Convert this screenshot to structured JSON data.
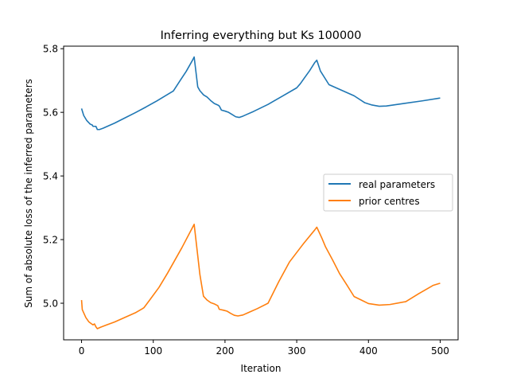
{
  "chart_data": {
    "type": "line",
    "title": "Inferring everything but Ks 100000",
    "xlabel": "Iteration",
    "ylabel": "Sum of absolute loss of the inferred parameters",
    "xlim": [
      -25,
      525
    ],
    "ylim": [
      4.885,
      5.808
    ],
    "xticks": [
      0,
      100,
      200,
      300,
      400,
      500
    ],
    "xtick_labels": [
      "0",
      "100",
      "200",
      "300",
      "400",
      "500"
    ],
    "yticks": [
      5.0,
      5.2,
      5.4,
      5.6,
      5.8
    ],
    "ytick_labels": [
      "5.0",
      "5.2",
      "5.4",
      "5.6",
      "5.8"
    ],
    "grid": false,
    "legend_position": "center-right",
    "series": [
      {
        "name": "real parameters",
        "color": "#1f77b4",
        "points": [
          [
            0,
            5.612
          ],
          [
            3,
            5.59
          ],
          [
            7,
            5.575
          ],
          [
            12,
            5.563
          ],
          [
            15,
            5.56
          ],
          [
            16,
            5.556
          ],
          [
            20,
            5.556
          ],
          [
            22,
            5.546
          ],
          [
            25,
            5.546
          ],
          [
            30,
            5.55
          ],
          [
            35,
            5.555
          ],
          [
            40,
            5.56
          ],
          [
            46,
            5.566
          ],
          [
            60,
            5.582
          ],
          [
            75,
            5.599
          ],
          [
            90,
            5.617
          ],
          [
            105,
            5.636
          ],
          [
            116,
            5.651
          ],
          [
            128,
            5.667
          ],
          [
            138,
            5.702
          ],
          [
            146,
            5.729
          ],
          [
            155,
            5.765
          ],
          [
            157,
            5.774
          ],
          [
            162,
            5.68
          ],
          [
            165,
            5.668
          ],
          [
            170,
            5.655
          ],
          [
            175,
            5.648
          ],
          [
            180,
            5.637
          ],
          [
            185,
            5.628
          ],
          [
            190,
            5.623
          ],
          [
            192,
            5.62
          ],
          [
            195,
            5.607
          ],
          [
            200,
            5.604
          ],
          [
            205,
            5.6
          ],
          [
            210,
            5.593
          ],
          [
            215,
            5.586
          ],
          [
            220,
            5.584
          ],
          [
            225,
            5.588
          ],
          [
            230,
            5.593
          ],
          [
            240,
            5.603
          ],
          [
            260,
            5.625
          ],
          [
            280,
            5.651
          ],
          [
            300,
            5.677
          ],
          [
            305,
            5.69
          ],
          [
            318,
            5.731
          ],
          [
            325,
            5.756
          ],
          [
            328,
            5.764
          ],
          [
            333,
            5.73
          ],
          [
            345,
            5.687
          ],
          [
            360,
            5.672
          ],
          [
            380,
            5.652
          ],
          [
            395,
            5.63
          ],
          [
            405,
            5.623
          ],
          [
            415,
            5.619
          ],
          [
            425,
            5.62
          ],
          [
            450,
            5.628
          ],
          [
            475,
            5.636
          ],
          [
            500,
            5.645
          ]
        ]
      },
      {
        "name": "prior centres",
        "color": "#ff7f0e",
        "points": [
          [
            0,
            5.01
          ],
          [
            1,
            4.98
          ],
          [
            3,
            4.97
          ],
          [
            6,
            4.955
          ],
          [
            10,
            4.942
          ],
          [
            14,
            4.935
          ],
          [
            16,
            4.932
          ],
          [
            18,
            4.935
          ],
          [
            20,
            4.926
          ],
          [
            22,
            4.92
          ],
          [
            27,
            4.925
          ],
          [
            35,
            4.932
          ],
          [
            46,
            4.941
          ],
          [
            60,
            4.955
          ],
          [
            75,
            4.97
          ],
          [
            85,
            4.983
          ],
          [
            87,
            4.986
          ],
          [
            95,
            5.01
          ],
          [
            108,
            5.05
          ],
          [
            120,
            5.095
          ],
          [
            130,
            5.135
          ],
          [
            140,
            5.175
          ],
          [
            150,
            5.218
          ],
          [
            157,
            5.248
          ],
          [
            165,
            5.09
          ],
          [
            170,
            5.022
          ],
          [
            175,
            5.01
          ],
          [
            180,
            5.002
          ],
          [
            185,
            4.998
          ],
          [
            190,
            4.992
          ],
          [
            192,
            4.981
          ],
          [
            198,
            4.978
          ],
          [
            203,
            4.975
          ],
          [
            208,
            4.968
          ],
          [
            213,
            4.962
          ],
          [
            218,
            4.96
          ],
          [
            225,
            4.963
          ],
          [
            232,
            4.97
          ],
          [
            245,
            4.983
          ],
          [
            260,
            5.0
          ],
          [
            275,
            5.068
          ],
          [
            290,
            5.13
          ],
          [
            310,
            5.189
          ],
          [
            325,
            5.23
          ],
          [
            328,
            5.239
          ],
          [
            335,
            5.205
          ],
          [
            340,
            5.178
          ],
          [
            350,
            5.136
          ],
          [
            360,
            5.092
          ],
          [
            370,
            5.057
          ],
          [
            380,
            5.021
          ],
          [
            390,
            5.01
          ],
          [
            400,
            4.999
          ],
          [
            415,
            4.994
          ],
          [
            430,
            4.996
          ],
          [
            452,
            5.005
          ],
          [
            470,
            5.03
          ],
          [
            490,
            5.056
          ],
          [
            500,
            5.063
          ]
        ]
      }
    ]
  }
}
